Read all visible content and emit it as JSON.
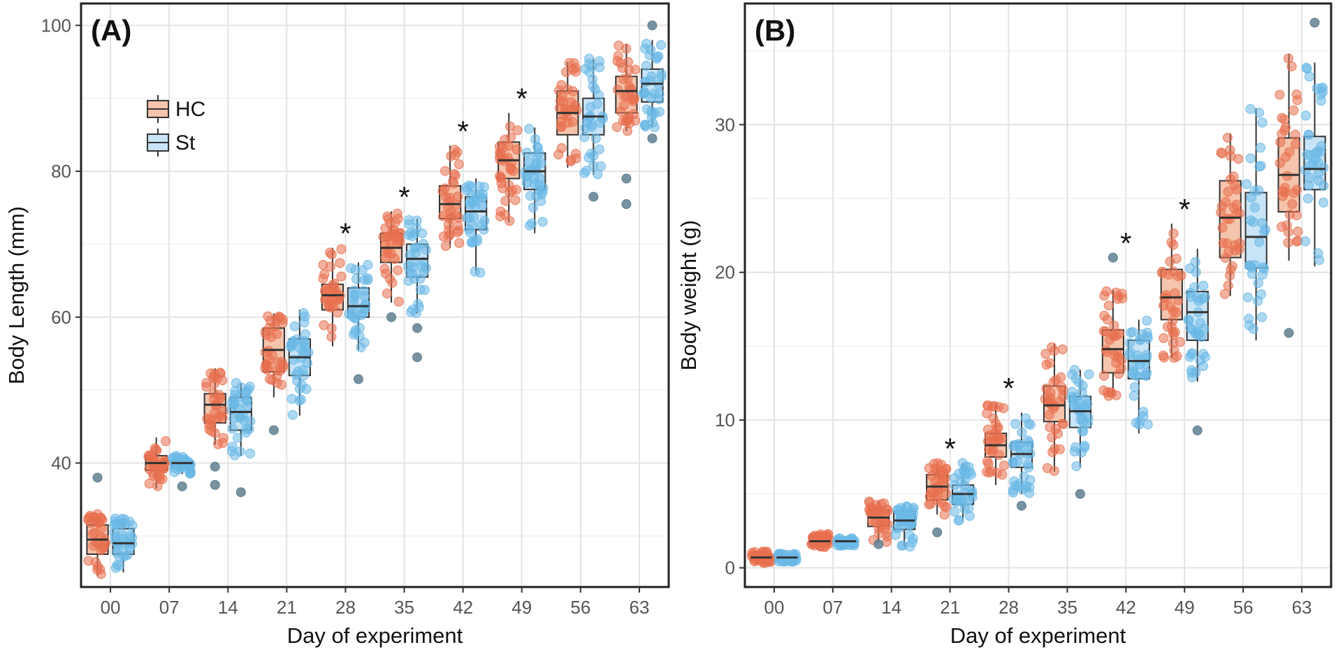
{
  "colors": {
    "hc_fill": "#f5c4ac",
    "hc_point": "#e8704f",
    "st_fill": "#c9e4f7",
    "st_point": "#6ab8e6",
    "outlier": "#5f7f8f",
    "grid_major": "#e3e3e3",
    "grid_minor": "#f1f1f1",
    "box_stroke": "#333333"
  },
  "chart_data": [
    {
      "type": "box",
      "panel_label": "(A)",
      "xlabel": "Day of experiment",
      "ylabel": "Body Length (mm)",
      "categories": [
        "00",
        "07",
        "14",
        "21",
        "28",
        "35",
        "42",
        "49",
        "56",
        "63"
      ],
      "yticks": [
        "40",
        "60",
        "80",
        "100"
      ],
      "ylim": [
        23,
        103
      ],
      "legend": {
        "position": "top-left",
        "entries": [
          "HC",
          "St"
        ]
      },
      "series": [
        {
          "name": "HC",
          "boxes": [
            {
              "q1": 27.5,
              "median": 29.5,
              "q3": 31.5,
              "low": 24.5,
              "high": 33.0,
              "outliers": [
                38.0
              ]
            },
            {
              "q1": 39.0,
              "median": 40.0,
              "q3": 41.0,
              "low": 36.5,
              "high": 43.5,
              "outliers": []
            },
            {
              "q1": 45.5,
              "median": 48.0,
              "q3": 49.5,
              "low": 42.5,
              "high": 53.0,
              "outliers": [
                39.5,
                37.0
              ]
            },
            {
              "q1": 52.5,
              "median": 55.5,
              "q3": 58.5,
              "low": 49.0,
              "high": 60.5,
              "outliers": [
                44.5
              ]
            },
            {
              "q1": 61.0,
              "median": 63.0,
              "q3": 64.5,
              "low": 56.0,
              "high": 69.5,
              "outliers": []
            },
            {
              "q1": 67.5,
              "median": 69.5,
              "q3": 71.5,
              "low": 62.0,
              "high": 74.5,
              "outliers": [
                60.0
              ]
            },
            {
              "q1": 73.5,
              "median": 75.5,
              "q3": 78.0,
              "low": 69.5,
              "high": 83.5,
              "outliers": []
            },
            {
              "q1": 79.0,
              "median": 81.5,
              "q3": 84.0,
              "low": 73.0,
              "high": 88.0,
              "outliers": []
            },
            {
              "q1": 85.0,
              "median": 88.0,
              "q3": 91.0,
              "low": 80.5,
              "high": 95.0,
              "outliers": []
            },
            {
              "q1": 88.0,
              "median": 91.0,
              "q3": 93.0,
              "low": 85.5,
              "high": 97.5,
              "outliers": [
                79.0,
                75.5
              ]
            }
          ]
        },
        {
          "name": "St",
          "boxes": [
            {
              "q1": 27.5,
              "median": 29.0,
              "q3": 31.0,
              "low": 25.0,
              "high": 32.5,
              "outliers": []
            },
            {
              "q1": 39.3,
              "median": 40.0,
              "q3": 40.3,
              "low": 38.5,
              "high": 41.0,
              "outliers": [
                36.8
              ]
            },
            {
              "q1": 44.5,
              "median": 47.0,
              "q3": 49.0,
              "low": 41.0,
              "high": 51.0,
              "outliers": [
                36.0
              ]
            },
            {
              "q1": 52.0,
              "median": 54.5,
              "q3": 57.0,
              "low": 46.5,
              "high": 61.0,
              "outliers": []
            },
            {
              "q1": 60.0,
              "median": 61.5,
              "q3": 64.0,
              "low": 55.5,
              "high": 67.5,
              "outliers": [
                51.5
              ]
            },
            {
              "q1": 65.5,
              "median": 68.0,
              "q3": 70.0,
              "low": 60.5,
              "high": 73.5,
              "outliers": [
                58.5,
                54.5
              ]
            },
            {
              "q1": 72.0,
              "median": 74.5,
              "q3": 76.5,
              "low": 66.0,
              "high": 79.0,
              "outliers": []
            },
            {
              "q1": 77.5,
              "median": 80.0,
              "q3": 82.5,
              "low": 71.5,
              "high": 86.0,
              "outliers": []
            },
            {
              "q1": 85.0,
              "median": 87.5,
              "q3": 90.0,
              "low": 79.5,
              "high": 95.5,
              "outliers": [
                76.5
              ]
            },
            {
              "q1": 89.5,
              "median": 92.0,
              "q3": 94.0,
              "low": 86.0,
              "high": 98.0,
              "outliers": [
                84.5,
                100.0
              ]
            }
          ]
        }
      ],
      "annotations": [
        {
          "category": "28",
          "text": "*"
        },
        {
          "category": "35",
          "text": "*"
        },
        {
          "category": "42",
          "text": "*"
        },
        {
          "category": "49",
          "text": "*"
        }
      ]
    },
    {
      "type": "box",
      "panel_label": "(B)",
      "xlabel": "Day of experiment",
      "ylabel": "Body weight (g)",
      "categories": [
        "00",
        "07",
        "14",
        "21",
        "28",
        "35",
        "42",
        "49",
        "56",
        "63"
      ],
      "yticks": [
        "0",
        "10",
        "20",
        "30"
      ],
      "ylim": [
        -1.3,
        38.2
      ],
      "series": [
        {
          "name": "HC",
          "boxes": [
            {
              "q1": 0.5,
              "median": 0.7,
              "q3": 0.9,
              "low": 0.3,
              "high": 1.1,
              "outliers": []
            },
            {
              "q1": 1.6,
              "median": 1.8,
              "q3": 2.1,
              "low": 1.4,
              "high": 2.3,
              "outliers": []
            },
            {
              "q1": 2.8,
              "median": 3.4,
              "q3": 3.9,
              "low": 1.7,
              "high": 4.5,
              "outliers": [
                1.6
              ]
            },
            {
              "q1": 4.6,
              "median": 5.5,
              "q3": 6.3,
              "low": 3.6,
              "high": 7.1,
              "outliers": [
                2.4
              ]
            },
            {
              "q1": 7.5,
              "median": 8.3,
              "q3": 9.1,
              "low": 5.6,
              "high": 11.2,
              "outliers": []
            },
            {
              "q1": 9.9,
              "median": 11.0,
              "q3": 12.3,
              "low": 6.5,
              "high": 15.2,
              "outliers": []
            },
            {
              "q1": 13.2,
              "median": 14.8,
              "q3": 16.1,
              "low": 11.6,
              "high": 18.8,
              "outliers": [
                21.0
              ]
            },
            {
              "q1": 16.8,
              "median": 18.3,
              "q3": 20.2,
              "low": 14.2,
              "high": 23.3,
              "outliers": []
            },
            {
              "q1": 21.0,
              "median": 23.7,
              "q3": 26.2,
              "low": 18.4,
              "high": 29.4,
              "outliers": []
            },
            {
              "q1": 24.1,
              "median": 26.6,
              "q3": 29.1,
              "low": 20.8,
              "high": 34.8,
              "outliers": [
                15.9
              ]
            }
          ]
        },
        {
          "name": "St",
          "boxes": [
            {
              "q1": 0.5,
              "median": 0.7,
              "q3": 0.9,
              "low": 0.4,
              "high": 1.0,
              "outliers": []
            },
            {
              "q1": 1.6,
              "median": 1.8,
              "q3": 1.9,
              "low": 1.5,
              "high": 2.0,
              "outliers": []
            },
            {
              "q1": 2.6,
              "median": 3.2,
              "q3": 3.8,
              "low": 1.4,
              "high": 4.3,
              "outliers": []
            },
            {
              "q1": 4.3,
              "median": 5.0,
              "q3": 5.6,
              "low": 3.2,
              "high": 7.1,
              "outliers": []
            },
            {
              "q1": 6.8,
              "median": 7.7,
              "q3": 8.5,
              "low": 5.0,
              "high": 10.5,
              "outliers": [
                4.2
              ]
            },
            {
              "q1": 9.5,
              "median": 10.6,
              "q3": 11.6,
              "low": 6.8,
              "high": 13.4,
              "outliers": [
                5.0
              ]
            },
            {
              "q1": 12.8,
              "median": 14.0,
              "q3": 15.4,
              "low": 9.1,
              "high": 16.8,
              "outliers": []
            },
            {
              "q1": 15.4,
              "median": 17.3,
              "q3": 18.7,
              "low": 12.6,
              "high": 21.6,
              "outliers": [
                9.3
              ]
            },
            {
              "q1": 20.3,
              "median": 22.4,
              "q3": 25.4,
              "low": 15.4,
              "high": 31.1,
              "outliers": []
            },
            {
              "q1": 25.6,
              "median": 27.0,
              "q3": 29.2,
              "low": 20.4,
              "high": 34.2,
              "outliers": [
                36.9
              ]
            }
          ]
        }
      ],
      "annotations": [
        {
          "category": "21",
          "text": "*"
        },
        {
          "category": "28",
          "text": "*"
        },
        {
          "category": "42",
          "text": "*"
        },
        {
          "category": "49",
          "text": "*"
        }
      ]
    }
  ]
}
